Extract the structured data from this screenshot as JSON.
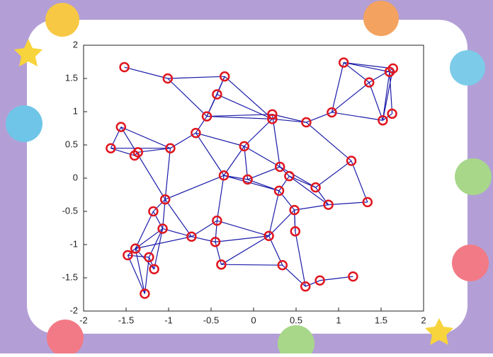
{
  "chart_data": {
    "type": "scatter",
    "x": [
      -1.52,
      -1.01,
      -0.34,
      -0.43,
      -0.55,
      0.22,
      0.22,
      0.62,
      0.92,
      1.06,
      1.36,
      1.6,
      1.64,
      1.63,
      1.52,
      -1.56,
      -1.68,
      -1.4,
      -1.36,
      -0.98,
      -0.68,
      -0.11,
      1.15,
      0.31,
      0.42,
      -0.35,
      -0.07,
      0.3,
      0.73,
      0.88,
      1.34,
      0.48,
      -1.04,
      -1.18,
      -0.43,
      -1.07,
      -0.73,
      0.18,
      0.49,
      -0.45,
      -1.39,
      -1.48,
      -1.23,
      -1.17,
      -0.38,
      0.34,
      0.61,
      0.78,
      1.17,
      -1.28
    ],
    "y": [
      1.67,
      1.5,
      1.53,
      1.26,
      0.93,
      0.96,
      0.89,
      0.84,
      0.99,
      1.74,
      1.44,
      1.6,
      1.65,
      0.97,
      0.87,
      0.77,
      0.45,
      0.34,
      0.39,
      0.45,
      0.68,
      0.48,
      0.26,
      0.17,
      0.03,
      0.04,
      -0.02,
      -0.19,
      -0.14,
      -0.4,
      -0.36,
      -0.48,
      -0.32,
      -0.5,
      -0.64,
      -0.76,
      -0.88,
      -0.87,
      -0.8,
      -0.96,
      -1.06,
      -1.16,
      -1.19,
      -1.37,
      -1.3,
      -1.31,
      -1.63,
      -1.54,
      -1.48,
      -1.74
    ],
    "edges": [
      [
        0,
        1
      ],
      [
        1,
        2
      ],
      [
        1,
        4
      ],
      [
        2,
        3
      ],
      [
        2,
        4
      ],
      [
        3,
        4
      ],
      [
        3,
        6
      ],
      [
        2,
        6
      ],
      [
        4,
        6
      ],
      [
        4,
        5
      ],
      [
        4,
        20
      ],
      [
        5,
        7
      ],
      [
        6,
        7
      ],
      [
        7,
        8
      ],
      [
        8,
        9
      ],
      [
        8,
        10
      ],
      [
        9,
        10
      ],
      [
        9,
        11
      ],
      [
        9,
        12
      ],
      [
        10,
        12
      ],
      [
        11,
        13
      ],
      [
        12,
        14
      ],
      [
        11,
        14
      ],
      [
        10,
        14
      ],
      [
        13,
        14
      ],
      [
        8,
        14
      ],
      [
        7,
        22
      ],
      [
        6,
        21
      ],
      [
        5,
        23
      ],
      [
        21,
        20
      ],
      [
        20,
        19
      ],
      [
        19,
        18
      ],
      [
        18,
        17
      ],
      [
        17,
        16
      ],
      [
        16,
        15
      ],
      [
        15,
        19
      ],
      [
        16,
        19
      ],
      [
        15,
        32
      ],
      [
        19,
        32
      ],
      [
        20,
        25
      ],
      [
        21,
        25
      ],
      [
        21,
        26
      ],
      [
        21,
        23
      ],
      [
        23,
        24
      ],
      [
        24,
        27
      ],
      [
        25,
        26
      ],
      [
        26,
        23
      ],
      [
        26,
        27
      ],
      [
        25,
        27
      ],
      [
        27,
        31
      ],
      [
        24,
        28
      ],
      [
        28,
        29
      ],
      [
        29,
        30
      ],
      [
        22,
        30
      ],
      [
        22,
        28
      ],
      [
        23,
        28
      ],
      [
        24,
        29
      ],
      [
        31,
        29
      ],
      [
        31,
        38
      ],
      [
        31,
        37
      ],
      [
        37,
        27
      ],
      [
        32,
        33
      ],
      [
        32,
        35
      ],
      [
        32,
        36
      ],
      [
        32,
        25
      ],
      [
        33,
        35
      ],
      [
        33,
        40
      ],
      [
        34,
        36
      ],
      [
        34,
        25
      ],
      [
        34,
        39
      ],
      [
        34,
        37
      ],
      [
        35,
        36
      ],
      [
        35,
        40
      ],
      [
        36,
        39
      ],
      [
        36,
        40
      ],
      [
        40,
        41
      ],
      [
        41,
        42
      ],
      [
        42,
        43
      ],
      [
        40,
        43
      ],
      [
        41,
        49
      ],
      [
        42,
        49
      ],
      [
        40,
        49
      ],
      [
        43,
        35
      ],
      [
        39,
        44
      ],
      [
        44,
        45
      ],
      [
        45,
        37
      ],
      [
        45,
        46
      ],
      [
        46,
        47
      ],
      [
        47,
        48
      ],
      [
        38,
        46
      ],
      [
        38,
        31
      ],
      [
        39,
        37
      ],
      [
        44,
        37
      ],
      [
        42,
        35
      ]
    ],
    "marker_color": "#e0161e",
    "edge_color": "#1a1aa8",
    "xlim": [
      -2,
      2
    ],
    "ylim": [
      -2,
      2
    ],
    "xticks": [
      -2,
      -1.5,
      -1,
      -0.5,
      0,
      0.5,
      1,
      1.5,
      2
    ],
    "yticks": [
      -2,
      -1.5,
      -1,
      -0.5,
      0,
      0.5,
      1,
      1.5,
      2
    ]
  }
}
